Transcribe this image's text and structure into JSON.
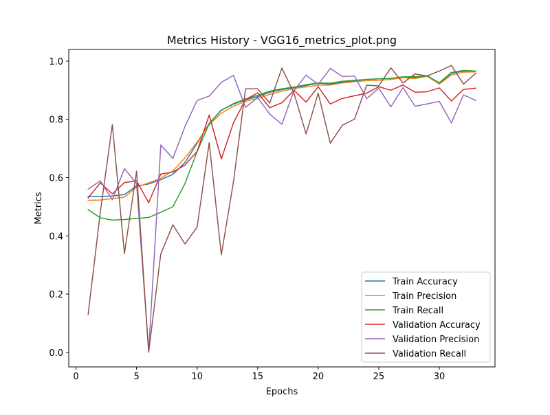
{
  "chart_data": {
    "type": "line",
    "title": "Metrics History - VGG16_metrics_plot.png",
    "xlabel": "Epochs",
    "ylabel": "Metrics",
    "xlim": [
      -0.6,
      34.6
    ],
    "ylim": [
      -0.05,
      1.04
    ],
    "xticks": [
      0,
      5,
      10,
      15,
      20,
      25,
      30
    ],
    "yticks": [
      0.0,
      0.2,
      0.4,
      0.6,
      0.8,
      1.0
    ],
    "xtick_labels": [
      "0",
      "5",
      "10",
      "15",
      "20",
      "25",
      "30"
    ],
    "ytick_labels": [
      "0.0",
      "0.2",
      "0.4",
      "0.6",
      "0.8",
      "1.0"
    ],
    "grid": false,
    "legend_position": "lower-right",
    "x": [
      1,
      2,
      3,
      4,
      5,
      6,
      7,
      8,
      9,
      10,
      11,
      12,
      13,
      14,
      15,
      16,
      17,
      18,
      19,
      20,
      21,
      22,
      23,
      24,
      25,
      26,
      27,
      28,
      29,
      30,
      31,
      32,
      33
    ],
    "series": [
      {
        "name": "Train Accuracy",
        "color": "#1f77b4",
        "values": [
          0.536,
          0.535,
          0.537,
          0.542,
          0.571,
          0.578,
          0.593,
          0.611,
          0.652,
          0.718,
          0.786,
          0.832,
          0.852,
          0.867,
          0.878,
          0.893,
          0.902,
          0.909,
          0.916,
          0.924,
          0.921,
          0.928,
          0.932,
          0.937,
          0.939,
          0.941,
          0.945,
          0.944,
          0.95,
          0.924,
          0.958,
          0.966,
          0.965
        ]
      },
      {
        "name": "Train Precision",
        "color": "#ff7f0e",
        "values": [
          0.522,
          0.523,
          0.528,
          0.533,
          0.567,
          0.582,
          0.598,
          0.623,
          0.668,
          0.722,
          0.782,
          0.821,
          0.845,
          0.862,
          0.872,
          0.886,
          0.896,
          0.906,
          0.911,
          0.917,
          0.918,
          0.925,
          0.929,
          0.933,
          0.934,
          0.937,
          0.943,
          0.94,
          0.948,
          0.921,
          0.952,
          0.962,
          0.963
        ]
      },
      {
        "name": "Train Recall",
        "color": "#2ca02c",
        "values": [
          0.49,
          0.462,
          0.454,
          0.456,
          0.46,
          0.463,
          0.481,
          0.5,
          0.58,
          0.689,
          0.785,
          0.831,
          0.854,
          0.87,
          0.883,
          0.897,
          0.905,
          0.911,
          0.919,
          0.925,
          0.924,
          0.931,
          0.934,
          0.937,
          0.939,
          0.941,
          0.946,
          0.947,
          0.949,
          0.926,
          0.961,
          0.968,
          0.966
        ]
      },
      {
        "name": "Validation Accuracy",
        "color": "#d62728",
        "values": [
          0.53,
          0.582,
          0.544,
          0.583,
          0.589,
          0.514,
          0.612,
          0.619,
          0.643,
          0.69,
          0.815,
          0.664,
          0.788,
          0.868,
          0.891,
          0.84,
          0.857,
          0.9,
          0.859,
          0.912,
          0.853,
          0.872,
          0.881,
          0.89,
          0.912,
          0.9,
          0.918,
          0.893,
          0.895,
          0.908,
          0.863,
          0.903,
          0.907
        ]
      },
      {
        "name": "Validation Precision",
        "color": "#9467bd",
        "values": [
          0.56,
          0.589,
          0.524,
          0.631,
          0.58,
          0.003,
          0.712,
          0.666,
          0.776,
          0.865,
          0.88,
          0.927,
          0.951,
          0.841,
          0.875,
          0.818,
          0.783,
          0.899,
          0.952,
          0.92,
          0.975,
          0.947,
          0.949,
          0.871,
          0.907,
          0.843,
          0.909,
          0.845,
          0.853,
          0.862,
          0.788,
          0.884,
          0.865
        ]
      },
      {
        "name": "Validation Recall",
        "color": "#8c564b",
        "values": [
          0.13,
          0.479,
          0.782,
          0.339,
          0.622,
          0.0,
          0.338,
          0.438,
          0.372,
          0.43,
          0.72,
          0.335,
          0.585,
          0.905,
          0.905,
          0.856,
          0.976,
          0.89,
          0.75,
          0.89,
          0.718,
          0.78,
          0.801,
          0.917,
          0.915,
          0.977,
          0.925,
          0.956,
          0.949,
          0.966,
          0.985,
          0.921,
          0.958
        ]
      }
    ]
  }
}
